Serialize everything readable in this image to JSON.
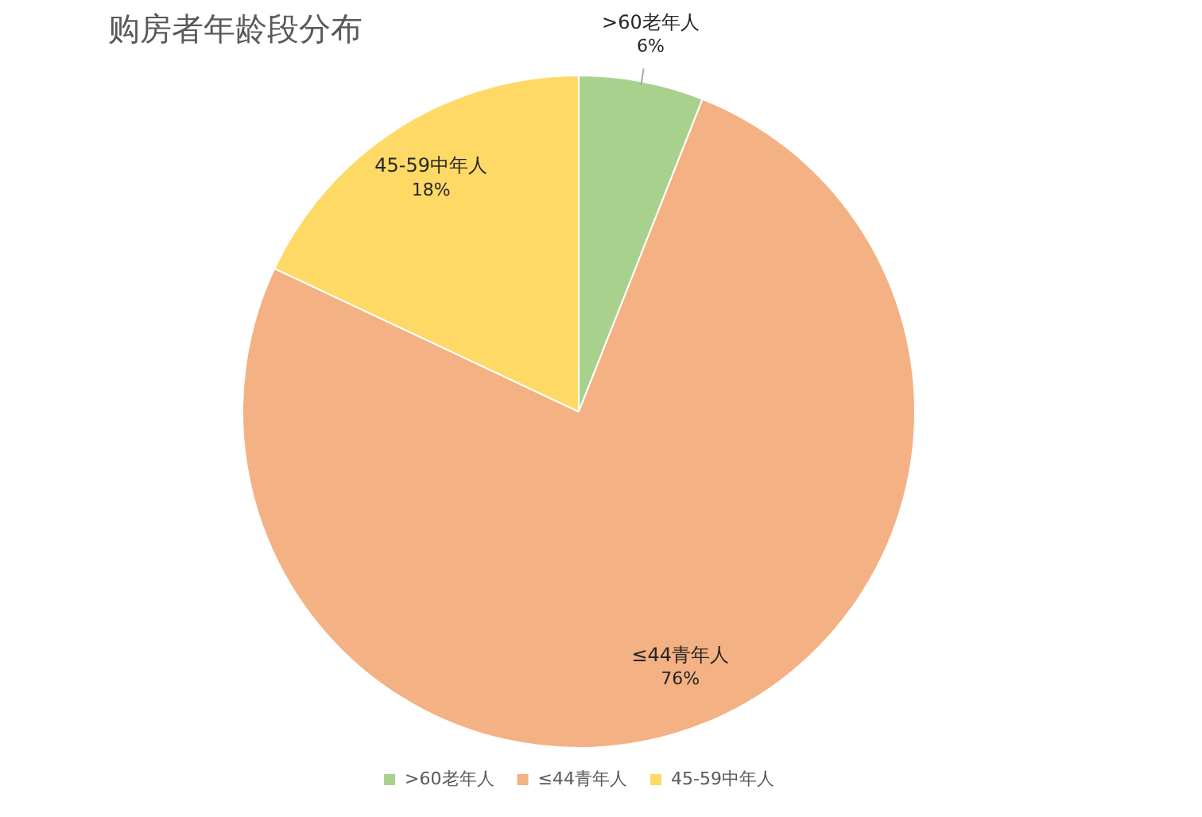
{
  "chart_data": {
    "type": "pie",
    "title": "购房者年龄段分布",
    "categories": [
      ">60老年人",
      "≤44青年人",
      "45-59中年人"
    ],
    "values": [
      6,
      76,
      18
    ],
    "colors": [
      "#a9d18e",
      "#f4b183",
      "#ffd966"
    ],
    "value_labels": [
      "6%",
      "76%",
      "18%"
    ],
    "legend": "bottom"
  }
}
